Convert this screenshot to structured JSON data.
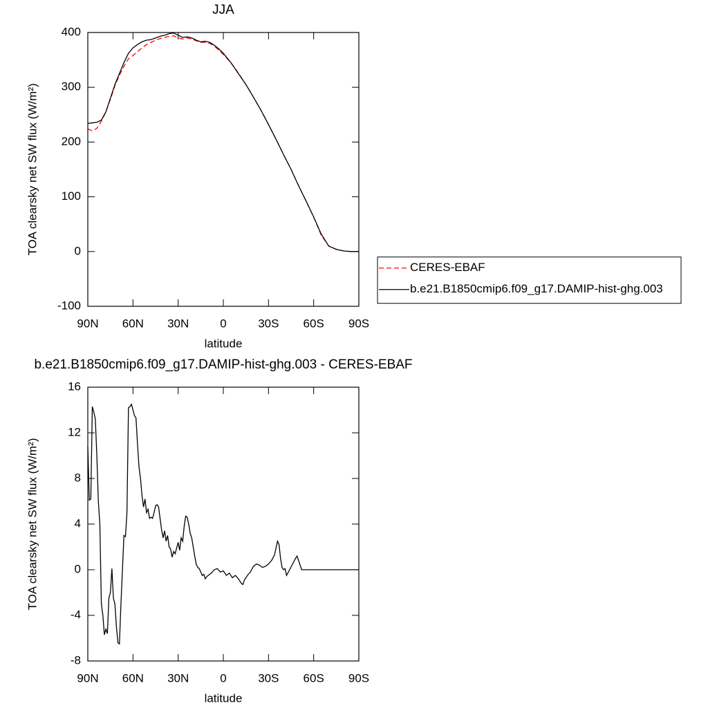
{
  "chart_data": [
    {
      "type": "line",
      "title": "JJA",
      "xlabel": "latitude",
      "ylabel": "TOA clearsky net SW flux (W/m²)",
      "x": [
        90,
        87,
        84,
        81,
        78,
        75,
        72,
        69,
        66,
        63,
        60,
        57,
        54,
        51,
        48,
        45,
        42,
        39,
        36,
        33,
        30,
        27,
        24,
        21,
        18,
        15,
        12,
        9,
        6,
        3,
        0,
        -5,
        -10,
        -15,
        -20,
        -25,
        -30,
        -35,
        -40,
        -45,
        -50,
        -55,
        -60,
        -65,
        -70,
        -75,
        -80,
        -85,
        -90
      ],
      "series": [
        {
          "name": "CERES-EBAF",
          "color": "#ff0000",
          "linestyle": "dashed",
          "values": [
            224,
            220,
            225,
            238,
            255,
            278,
            303,
            322,
            338,
            352,
            358,
            365,
            372,
            378,
            382,
            386,
            389,
            391,
            393,
            394,
            390,
            388,
            390,
            388,
            385,
            382,
            382,
            380,
            375,
            368,
            360,
            345,
            326,
            305,
            282,
            258,
            232,
            205,
            177,
            150,
            120,
            92,
            63,
            30,
            10,
            4,
            1,
            0,
            0
          ]
        },
        {
          "name": "b.e21.B1850cmip6.f09_g17.DAMIP-hist-ghg.003",
          "color": "#000000",
          "linestyle": "solid",
          "values": [
            234,
            235,
            236,
            240,
            255,
            280,
            305,
            325,
            345,
            362,
            372,
            378,
            383,
            386,
            387,
            390,
            393,
            395,
            398,
            399,
            395,
            391,
            392,
            390,
            386,
            383,
            384,
            382,
            377,
            370,
            362,
            345,
            325,
            305,
            282,
            258,
            232,
            205,
            177,
            150,
            120,
            92,
            63,
            32,
            10,
            4,
            1,
            0,
            0
          ]
        }
      ],
      "xlim": [
        90,
        -90
      ],
      "xticks": [
        {
          "value": 90,
          "label": "90N"
        },
        {
          "value": 60,
          "label": "60N"
        },
        {
          "value": 30,
          "label": "30N"
        },
        0,
        {
          "value": -30,
          "label": "30S"
        },
        {
          "value": -60,
          "label": "60S"
        },
        {
          "value": -90,
          "label": "90S"
        }
      ],
      "ylim": [
        -100,
        400
      ],
      "yticks": [
        -100,
        0,
        100,
        200,
        300,
        400
      ],
      "legend_loc": "right"
    },
    {
      "type": "line",
      "title": "b.e21.B1850cmip6.f09_g17.DAMIP-hist-ghg.003 - CERES-EBAF",
      "xlabel": "latitude",
      "ylabel": "TOA clearsky net SW flux (W/m²)",
      "x": [
        90,
        89,
        88,
        87,
        86,
        85,
        84,
        83,
        82,
        81,
        80,
        79,
        78,
        77,
        76,
        75,
        74,
        73,
        72,
        71,
        70,
        69,
        68,
        67,
        66,
        65,
        64,
        63,
        62,
        61,
        60,
        59,
        58,
        57,
        56,
        55,
        54,
        53,
        52,
        51,
        50,
        49,
        48,
        47,
        46,
        45,
        44,
        43,
        42,
        41,
        40,
        39,
        38,
        37,
        36,
        35,
        34,
        33,
        32,
        31,
        30,
        29,
        28,
        27,
        26,
        25,
        24,
        23,
        22,
        21,
        20,
        19,
        18,
        17,
        16,
        15,
        14,
        13,
        12,
        11,
        10,
        8,
        6,
        4,
        2,
        0,
        -2,
        -4,
        -6,
        -8,
        -10,
        -12,
        -13,
        -14,
        -16,
        -18,
        -20,
        -22,
        -24,
        -26,
        -28,
        -30,
        -32,
        -34,
        -36,
        -37,
        -38,
        -39,
        -40,
        -41,
        -42,
        -44,
        -46,
        -48,
        -49,
        -50,
        -52,
        -54,
        -90
      ],
      "values": [
        10.8,
        6.1,
        6.2,
        14.3,
        13.8,
        13.2,
        10,
        6,
        4,
        -3,
        -4,
        -5.7,
        -5.2,
        -5.6,
        -2.5,
        -2,
        0.1,
        -2.5,
        -3,
        -5,
        -6.4,
        -6.5,
        -3,
        0,
        3,
        2.9,
        5,
        14.2,
        14.3,
        14.5,
        14,
        13.5,
        13.3,
        11,
        9,
        8,
        6.5,
        5.5,
        6.2,
        5,
        5.3,
        4.5,
        4.6,
        4.5,
        5,
        5.6,
        5.7,
        5.5,
        4.5,
        3.5,
        2.8,
        3.4,
        2.5,
        3,
        2,
        1.8,
        1.1,
        1.6,
        1.4,
        1.9,
        2.4,
        1.7,
        2.8,
        2.5,
        3.8,
        4.7,
        4.6,
        4,
        3.2,
        2.8,
        2,
        1.2,
        0.5,
        0.2,
        0.1,
        -0.2,
        -0.5,
        -0.4,
        -0.8,
        -0.6,
        -0.5,
        -0.3,
        0,
        0.1,
        -0.2,
        -0.1,
        -0.5,
        -0.3,
        -0.7,
        -0.5,
        -0.8,
        -1.2,
        -1.3,
        -0.9,
        -0.5,
        -0.2,
        0.3,
        0.5,
        0.4,
        0.2,
        0.3,
        0.5,
        0.8,
        1.3,
        2.5,
        2.2,
        1,
        0.2,
        0,
        0.1,
        -0.5,
        0,
        0.5,
        1,
        1.2,
        0.8,
        0,
        0,
        0
      ],
      "color": "#000000",
      "xlim": [
        90,
        -90
      ],
      "xticks": [
        {
          "value": 90,
          "label": "90N"
        },
        {
          "value": 60,
          "label": "60N"
        },
        {
          "value": 30,
          "label": "30N"
        },
        0,
        {
          "value": -30,
          "label": "30S"
        },
        {
          "value": -60,
          "label": "60S"
        },
        {
          "value": -90,
          "label": "90S"
        }
      ],
      "ylim": [
        -8,
        16
      ],
      "yticks": [
        -8,
        -4,
        0,
        4,
        8,
        12,
        16
      ]
    }
  ]
}
